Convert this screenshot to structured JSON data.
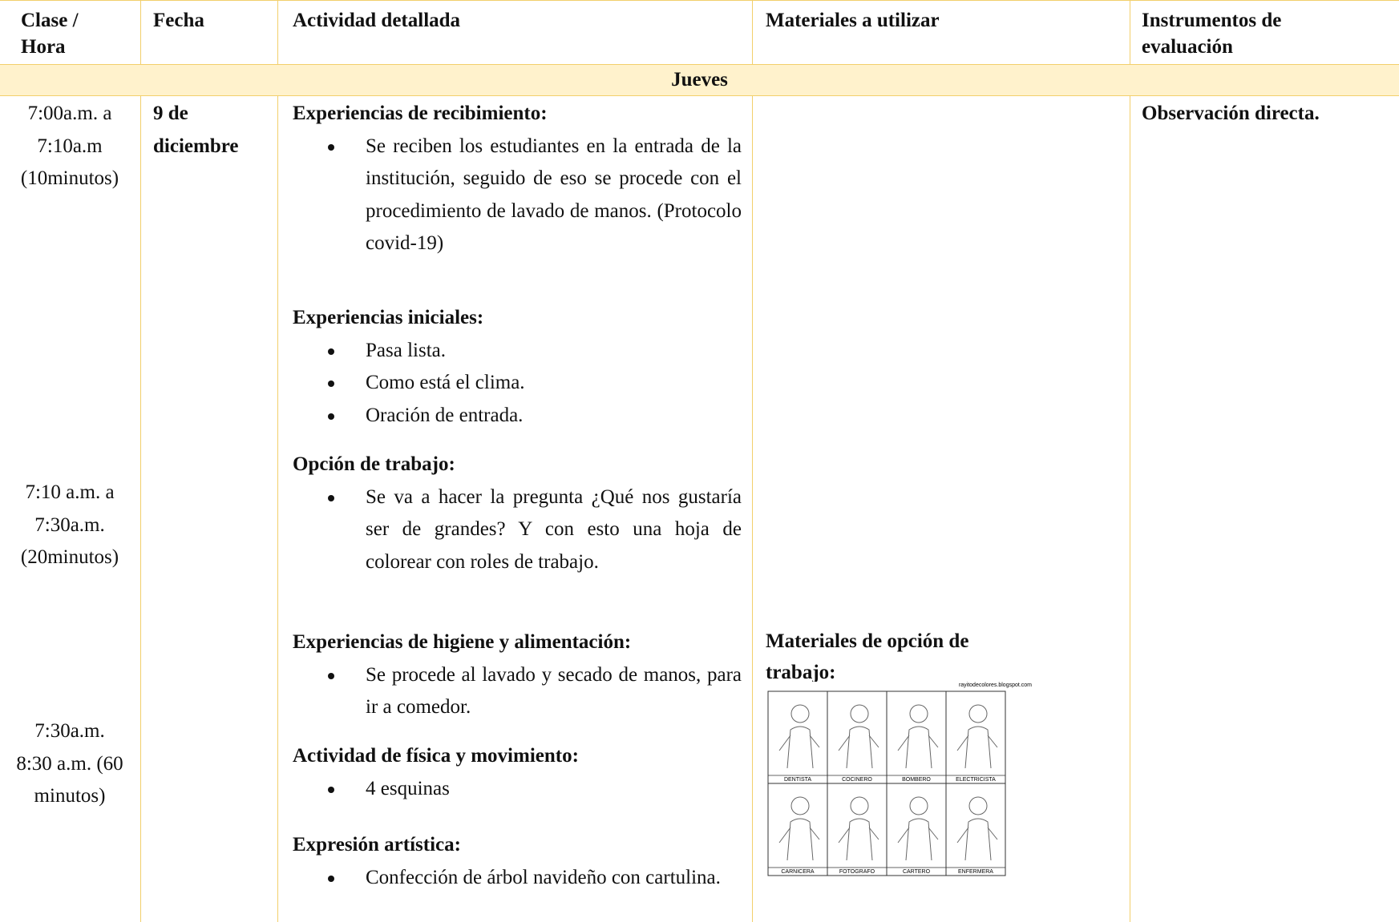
{
  "header": {
    "columns": [
      "Clase / Hora",
      "Fecha",
      "Actividad detallada",
      "Materiales a utilizar",
      "Instrumentos de evaluación"
    ]
  },
  "day": "Jueves",
  "row": {
    "times": [
      "7:00a.m. a 7:10a.m (10minutos)",
      "7:10 a.m. a 7:30a.m. (20minutos)",
      "7:30a.m. 8:30 a.m. (60 minutos)"
    ],
    "date": "9 de diciembre",
    "activities": [
      {
        "heading": "Experiencias de recibimiento:",
        "items": [
          "Se reciben los estudiantes en la entrada de la institución, seguido de eso se procede con el procedimiento de lavado de manos. (Protocolo covid-19)"
        ]
      },
      {
        "heading": "Experiencias iniciales:",
        "items": [
          "Pasa lista.",
          "Como está el clima.",
          "Oración de entrada."
        ]
      },
      {
        "heading": "Opción de trabajo:",
        "items": [
          "Se va a hacer la pregunta ¿Qué nos gustaría ser de grandes? Y con esto una hoja de colorear con roles de trabajo."
        ]
      },
      {
        "heading": "Experiencias de higiene y alimentación:",
        "items": [
          "Se procede al lavado y secado de manos, para ir a comedor."
        ]
      },
      {
        "heading": "Actividad de física y movimiento:",
        "items": [
          "4 esquinas"
        ]
      },
      {
        "heading": "Expresión artística:",
        "items": [
          "Confección de árbol navideño con cartulina."
        ]
      }
    ],
    "materials": {
      "heading": "Materiales de opción de trabajo:",
      "image_source": "rayitodecolores.blogspot.com",
      "image_labels": [
        "DENTISTA",
        "COCINERO",
        "BOMBERO",
        "ELECTRICISTA",
        "CARNICERA",
        "FOTOGRAFO",
        "CARTERO",
        "ENFERMERA"
      ]
    },
    "instruments": "Observación directa."
  }
}
